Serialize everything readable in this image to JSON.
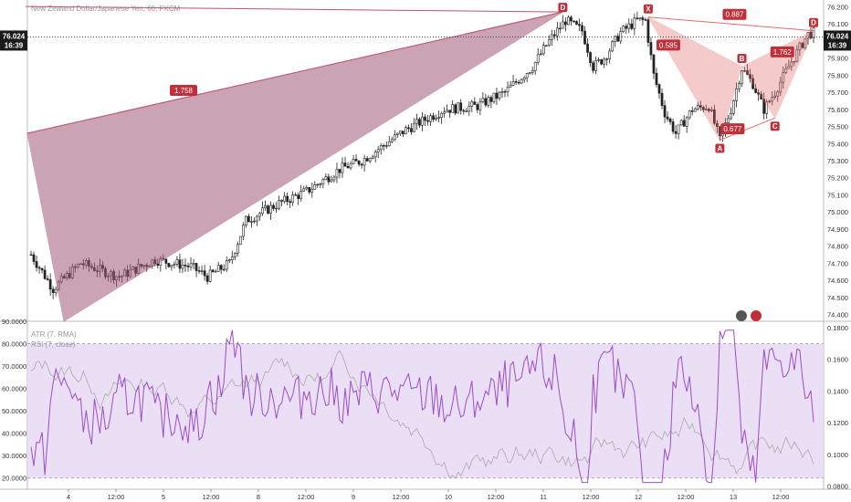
{
  "title": "New Zealand Dollar/Japanese Yen, 60, FXCM",
  "indicator_labels": [
    "ATR (7, RMA)",
    "RSI (7, close)"
  ],
  "price_axis": {
    "ticks": [
      "76.200",
      "76.100",
      "76.000",
      "75.900",
      "75.800",
      "75.700",
      "75.600",
      "75.500",
      "75.400",
      "75.300",
      "75.200",
      "75.100",
      "75.000",
      "74.900",
      "74.800",
      "74.700",
      "74.600",
      "74.500",
      "74.400"
    ],
    "current_price": "76.024",
    "current_time": "16:39"
  },
  "rsi_axis": {
    "ticks": [
      "90.0000",
      "80.0000",
      "70.0000",
      "60.0000",
      "50.0000",
      "40.0000",
      "30.0000",
      "20.0000"
    ]
  },
  "atr_axis": {
    "ticks": [
      "0.1800",
      "0.1600",
      "0.1400",
      "0.1200",
      "0.1000",
      "0.0800"
    ]
  },
  "time_axis": {
    "ticks": [
      "4",
      "12:00",
      "5",
      "12:00",
      "8",
      "12:00",
      "9",
      "12:00",
      "10",
      "12:00",
      "11",
      "12:00",
      "12",
      "12:00",
      "13",
      "12:00"
    ]
  },
  "chart_data": {
    "type": "candlestick",
    "ylim": [
      74.36,
      76.24
    ],
    "patterns": [
      {
        "name": "bearish-bat-large",
        "points": [
          {
            "label": "X",
            "price": 74.36
          },
          {
            "label": "",
            "price": 75.46
          },
          {
            "label": "D",
            "price": 76.17
          }
        ],
        "ratios": [
          "1.758"
        ],
        "color": "#a05a78"
      },
      {
        "name": "bearish-bat-small",
        "points": [
          {
            "label": "X",
            "price": 76.14
          },
          {
            "label": "A",
            "price": 75.42
          },
          {
            "label": "B",
            "price": 75.85
          },
          {
            "label": "C",
            "price": 75.55
          },
          {
            "label": "D",
            "price": 76.06
          }
        ],
        "ratios": [
          "0.585",
          "0.677",
          "1.762",
          "0.887"
        ],
        "color": "#e06a6a"
      }
    ],
    "rsi": {
      "ylim": [
        15,
        90
      ],
      "upper": 80,
      "lower": 20
    },
    "atr": {
      "ylim": [
        0.078,
        0.184
      ]
    }
  },
  "colors": {
    "candle": "#222222",
    "pattern_large": "#a05a78",
    "pattern_small": "#e06a6a",
    "rsi": "#9b4dca",
    "atr": "#aaaaaa",
    "rsi_band": "#e8d9f3"
  }
}
